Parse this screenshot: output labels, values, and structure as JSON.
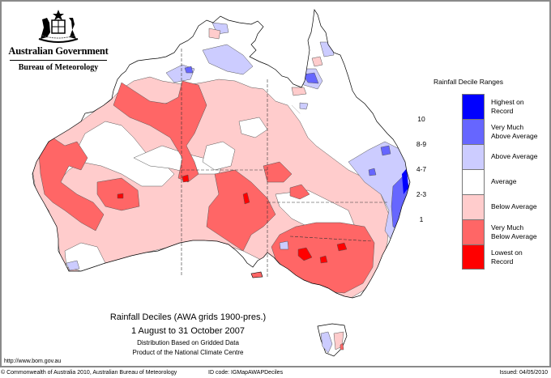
{
  "header": {
    "logo": "Australian Government coat of arms",
    "government": "Australian Government",
    "bureau": "Bureau of Meteorology"
  },
  "legend": {
    "title": "Rainfall Decile Ranges",
    "items": [
      {
        "label": "Highest on Record",
        "range": "",
        "color": "#0000ff"
      },
      {
        "label": "Very Much Above Average",
        "range": "10",
        "color": "#6666ff"
      },
      {
        "label": "Above Average",
        "range": "8-9",
        "color": "#ccccff"
      },
      {
        "label": "Average",
        "range": "4-7",
        "color": "#ffffff"
      },
      {
        "label": "Below Average",
        "range": "2-3",
        "color": "#ffcccc"
      },
      {
        "label": "Very Much Below Average",
        "range": "1",
        "color": "#ff6666"
      },
      {
        "label": "Lowest on Record",
        "range": "",
        "color": "#ff0000"
      }
    ]
  },
  "map_title": {
    "line1": "Rainfall Deciles (AWA grids 1900-pres.)",
    "line2": "1 August to 31 October 2007",
    "line3": "Distribution Based on Gridded Data",
    "line4": "Product of the National Climate Centre"
  },
  "url": "http://www.bom.gov.au",
  "footer": {
    "copyright": "© Commonwealth of Australia 2010, Australian Bureau of Meteorology",
    "id_code": "ID code: IGMapAWAPDeciles",
    "issued": "Issued: 04/05/2010"
  },
  "colors": {
    "highest": "#0000ff",
    "very_much_above": "#6666ff",
    "above": "#ccccff",
    "average": "#ffffff",
    "below": "#ffcccc",
    "very_much_below": "#ff6666",
    "lowest": "#ff0000",
    "frame": "#8a8a8a"
  }
}
